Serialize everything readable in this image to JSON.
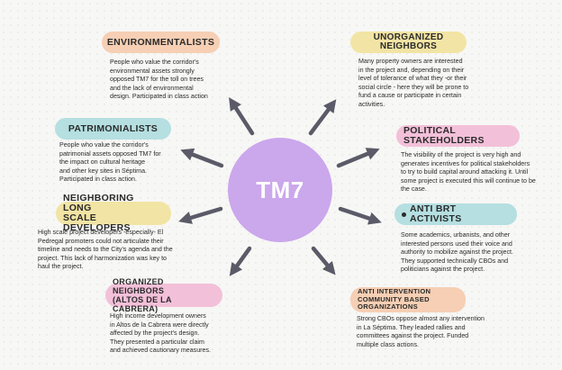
{
  "center": {
    "label": "TM7"
  },
  "colors": {
    "center": "#cba7ec",
    "peach": "#f6cfb4",
    "yellow": "#f2e4a4",
    "teal": "#b5dfe1",
    "pink": "#f3c0d9",
    "arrow": "#5b5a68"
  },
  "nodes": {
    "environmentalists": {
      "title": "ENVIRONMENTALISTS",
      "lines": [
        "People who value the corridor's",
        "environmental assets strongly",
        "opposed TM7 for the toll on trees",
        "and the lack of environmental",
        "design. Participated in class action"
      ]
    },
    "patrimonialists": {
      "title": "PATRIMONIALISTS",
      "lines": [
        "People who value the corridor's",
        "patrimonial assets  opposed TM7 for",
        "the  impact on cultural heritage",
        "and other key sites in Séptima.",
        "Participated in class action."
      ]
    },
    "long_scale_developers": {
      "title_lines": [
        "NEIGHBORING LONG",
        "SCALE DEVELOPERS"
      ],
      "lines": [
        "High scale project developers -especially- El",
        "Pedregal promoters could not articulate their",
        "timeline and needs to the City's agenda and the",
        "project. This lack of harmonization was key to",
        "haul the project."
      ]
    },
    "organized_neighbors": {
      "title_lines": [
        "ORGANIZED NEIGHBORS",
        "(ALTOS DE LA CABRERA)"
      ],
      "lines": [
        "High income development owners",
        "in Altos de la Cabrera were directly",
        "affected by the project's design.",
        "They presented a particular claim",
        "and achieved cautionary measures."
      ]
    },
    "unorganized_neighbors": {
      "title_lines": [
        "UNORGANIZED",
        "NEIGHBORS"
      ],
      "lines": [
        "Many property owners are interested",
        "in the project and, depending on their",
        "level of tolerance of what they -or their",
        "social circle - here they will be prone to",
        "fund a cause or participate in certain",
        "activities."
      ]
    },
    "political_stakeholders": {
      "title": "POLITICAL STAKEHOLDERS",
      "lines": [
        "The visibility of the project is very high and",
        "generates incentives for political stakeholders",
        "to try to build capital around attacking it. Until",
        "some project is executed this will continue to be",
        "the case."
      ]
    },
    "anti_brt": {
      "title": "ANTI BRT ACTIVISTS",
      "lines": [
        "Some academics, urbanists, and other",
        "interested persons used their voice and",
        "authority to mobilize against the project.",
        "They supported technically CBOs and",
        "politicians against the project."
      ]
    },
    "anti_intervention": {
      "title_lines": [
        "ANTI INTERVENTION",
        "COMMUNITY BASED",
        "ORGANIZATIONS"
      ],
      "lines": [
        "Strong CBOs oppose almost any intervention",
        "in La Séptima. They leaded rallies and",
        "committees against the project. Funded",
        "multiple class actions."
      ]
    }
  }
}
